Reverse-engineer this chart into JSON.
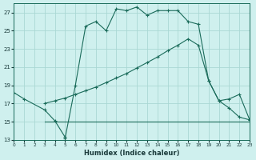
{
  "xlabel": "Humidex (Indice chaleur)",
  "background_color": "#cff0ee",
  "grid_color": "#aad8d4",
  "line_color": "#1a6b5a",
  "xlim": [
    0,
    23
  ],
  "ylim": [
    13,
    28
  ],
  "xticks": [
    0,
    1,
    2,
    3,
    4,
    5,
    6,
    7,
    8,
    9,
    10,
    11,
    12,
    13,
    14,
    15,
    16,
    17,
    18,
    19,
    20,
    21,
    22,
    23
  ],
  "yticks": [
    13,
    15,
    17,
    19,
    21,
    23,
    25,
    27
  ],
  "line1_x": [
    0,
    1,
    3,
    4,
    5,
    5,
    6,
    7,
    8,
    9,
    10,
    11,
    12,
    13,
    14,
    15,
    16,
    17,
    18,
    19,
    20,
    21,
    22,
    23
  ],
  "line1_y": [
    18.2,
    17.5,
    16.3,
    15.1,
    13.3,
    13.2,
    19.0,
    25.5,
    26.0,
    25.0,
    27.4,
    27.2,
    27.6,
    26.7,
    27.2,
    27.2,
    27.2,
    26.0,
    25.7,
    19.5,
    17.3,
    16.5,
    15.5,
    15.2
  ],
  "line2_x": [
    3,
    4,
    5,
    6,
    7,
    8,
    9,
    10,
    11,
    12,
    13,
    14,
    15,
    16,
    17,
    18,
    19,
    20,
    21,
    22,
    23
  ],
  "line2_y": [
    17.0,
    17.3,
    17.6,
    18.0,
    18.4,
    18.8,
    19.3,
    19.8,
    20.3,
    20.9,
    21.5,
    22.1,
    22.8,
    23.4,
    24.1,
    23.4,
    19.5,
    17.3,
    17.5,
    18.0,
    15.2
  ],
  "line3_x": [
    3,
    20,
    20,
    21,
    23
  ],
  "line3_y": [
    15,
    15,
    15,
    15,
    15
  ]
}
